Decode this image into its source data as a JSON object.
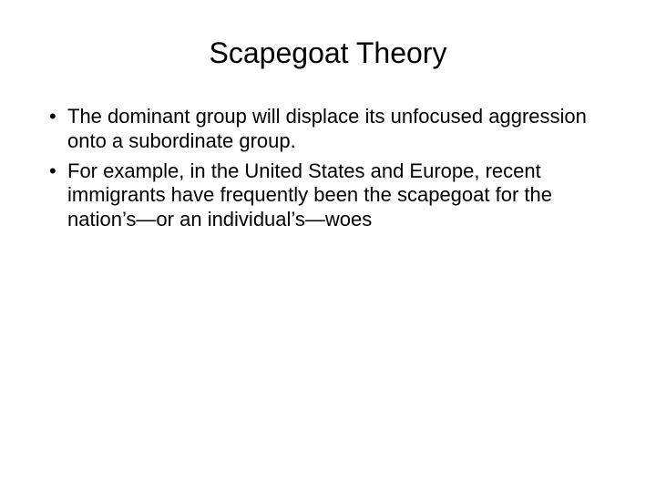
{
  "slide": {
    "title": "Scapegoat Theory",
    "bullets": [
      "The dominant group will displace its unfocused aggression onto a subordinate group.",
      "For example, in the United States and Europe, recent immigrants have frequently been the scapegoat for the nation’s—or an individual’s—woes"
    ],
    "background_color": "#ffffff",
    "text_color": "#000000",
    "title_fontsize": 32,
    "body_fontsize": 22
  }
}
